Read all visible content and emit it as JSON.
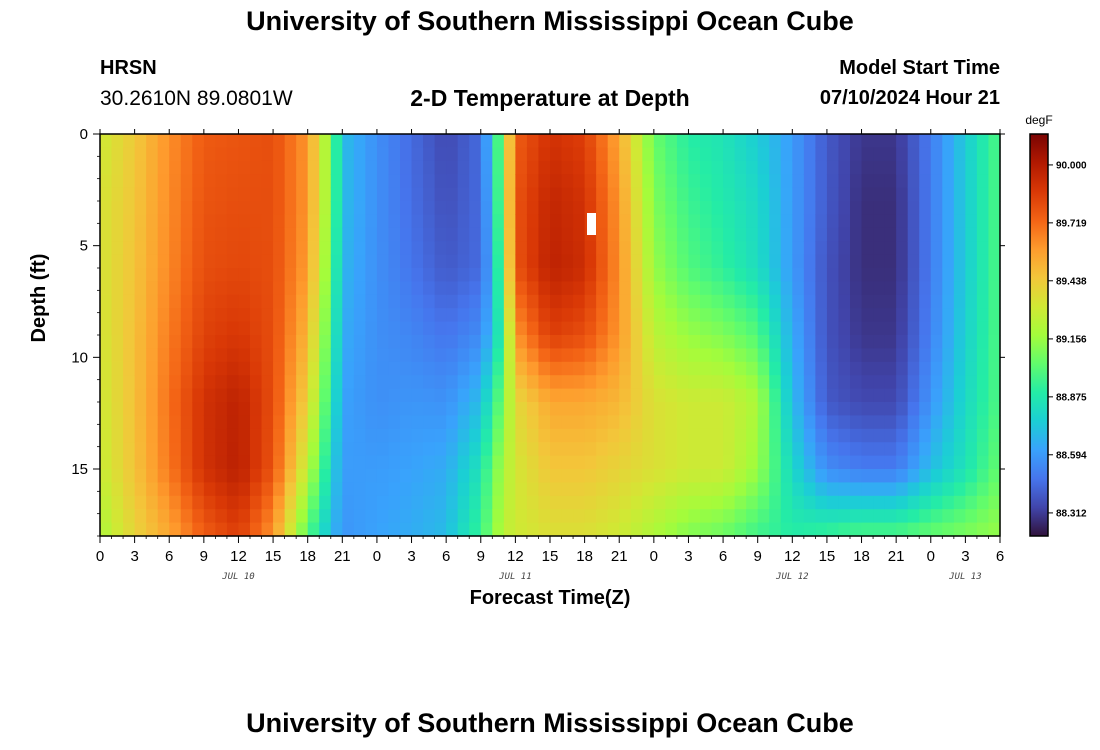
{
  "header": {
    "title": "University of Southern Mississippi Ocean Cube",
    "station_name": "HRSN",
    "station_coords": "30.2610N  89.0801W",
    "chart_title": "2-D Temperature at Depth",
    "model_start_label": "Model Start Time",
    "model_start_value": "07/10/2024 Hour 21"
  },
  "footer": {
    "title": "University of Southern Mississippi Ocean Cube"
  },
  "chart_data": {
    "type": "heatmap",
    "title": "2-D Temperature at Depth",
    "xlabel": "Forecast Time(Z)",
    "ylabel": "Depth (ft)",
    "x_hours_range": [
      0,
      78
    ],
    "x_tick_labels": [
      "0",
      "3",
      "6",
      "9",
      "12",
      "15",
      "18",
      "21",
      "0",
      "3",
      "6",
      "9",
      "12",
      "15",
      "18",
      "21",
      "0",
      "3",
      "6",
      "9",
      "12",
      "15",
      "18",
      "21",
      "0",
      "3",
      "6"
    ],
    "day_labels": [
      {
        "label": "JUL 10",
        "hour": 12
      },
      {
        "label": "JUL 11",
        "hour": 36
      },
      {
        "label": "JUL 12",
        "hour": 60
      },
      {
        "label": "JUL 13",
        "hour": 75
      }
    ],
    "y_range_ft": [
      0,
      18
    ],
    "y_ticks": [
      0,
      5,
      10,
      15
    ],
    "y_inverted": true,
    "colorbar": {
      "unit": "degF",
      "tick_labels": [
        "90.000",
        "89.719",
        "89.438",
        "89.156",
        "88.875",
        "88.594",
        "88.312"
      ],
      "min": 88.2,
      "max": 90.15,
      "palette": [
        "#30123b",
        "#4145ab",
        "#4675ed",
        "#39a2fc",
        "#1bcfd4",
        "#24eca6",
        "#61fc6c",
        "#a4fc3b",
        "#d1e834",
        "#f3c63a",
        "#fe9b2d",
        "#f36315",
        "#d93806",
        "#b11901",
        "#7a0403"
      ]
    },
    "temperature_profiles_degF": {
      "depths_ft": [
        0,
        3,
        6,
        9,
        12,
        15,
        18
      ],
      "series": [
        {
          "hour": 0,
          "values": [
            89.3,
            89.33,
            89.33,
            89.32,
            89.3,
            89.28,
            89.2
          ]
        },
        {
          "hour": 3,
          "values": [
            89.44,
            89.45,
            89.46,
            89.47,
            89.47,
            89.46,
            89.4
          ]
        },
        {
          "hour": 6,
          "values": [
            89.62,
            89.63,
            89.64,
            89.67,
            89.7,
            89.68,
            89.55
          ]
        },
        {
          "hour": 9,
          "values": [
            89.76,
            89.78,
            89.8,
            89.84,
            89.9,
            89.9,
            89.75
          ]
        },
        {
          "hour": 12,
          "values": [
            89.78,
            89.8,
            89.82,
            89.88,
            89.97,
            89.98,
            89.85
          ]
        },
        {
          "hour": 15,
          "values": [
            89.8,
            89.8,
            89.8,
            89.8,
            89.8,
            89.78,
            89.6
          ]
        },
        {
          "hour": 18,
          "values": [
            89.6,
            89.6,
            89.58,
            89.5,
            89.4,
            89.25,
            89.0
          ]
        },
        {
          "hour": 20,
          "values": [
            89.1,
            89.1,
            89.05,
            88.98,
            88.9,
            88.8,
            88.7
          ]
        },
        {
          "hour": 21,
          "values": [
            88.7,
            88.7,
            88.68,
            88.65,
            88.62,
            88.6,
            88.58
          ]
        },
        {
          "hour": 24,
          "values": [
            88.56,
            88.56,
            88.56,
            88.56,
            88.56,
            88.6,
            88.62
          ]
        },
        {
          "hour": 27,
          "values": [
            88.45,
            88.46,
            88.48,
            88.53,
            88.58,
            88.62,
            88.65
          ]
        },
        {
          "hour": 30,
          "values": [
            88.35,
            88.37,
            88.4,
            88.48,
            88.57,
            88.65,
            88.7
          ]
        },
        {
          "hour": 33,
          "values": [
            88.45,
            88.45,
            88.45,
            88.55,
            88.7,
            88.85,
            88.95
          ]
        },
        {
          "hour": 34,
          "values": [
            88.75,
            88.7,
            88.65,
            88.7,
            88.9,
            89.05,
            89.1
          ]
        },
        {
          "hour": 35,
          "values": [
            89.2,
            89.2,
            89.15,
            89.0,
            89.1,
            89.2,
            89.25
          ]
        },
        {
          "hour": 36,
          "values": [
            89.75,
            89.78,
            89.78,
            89.6,
            89.38,
            89.32,
            89.3
          ]
        },
        {
          "hour": 39,
          "values": [
            89.9,
            89.95,
            89.97,
            89.85,
            89.55,
            89.45,
            89.35
          ]
        },
        {
          "hour": 42,
          "values": [
            89.85,
            89.9,
            89.92,
            89.8,
            89.55,
            89.45,
            89.35
          ]
        },
        {
          "hour": 45,
          "values": [
            89.55,
            89.6,
            89.62,
            89.6,
            89.5,
            89.4,
            89.3
          ]
        },
        {
          "hour": 48,
          "values": [
            89.05,
            89.1,
            89.15,
            89.25,
            89.35,
            89.35,
            89.2
          ]
        },
        {
          "hour": 51,
          "values": [
            88.9,
            88.95,
            89.0,
            89.15,
            89.3,
            89.3,
            89.1
          ]
        },
        {
          "hour": 54,
          "values": [
            88.85,
            88.88,
            88.92,
            89.1,
            89.3,
            89.3,
            89.05
          ]
        },
        {
          "hour": 57,
          "values": [
            88.75,
            88.8,
            88.82,
            89.0,
            89.2,
            89.15,
            88.95
          ]
        },
        {
          "hour": 60,
          "values": [
            88.6,
            88.6,
            88.6,
            88.65,
            88.7,
            88.8,
            88.9
          ]
        },
        {
          "hour": 63,
          "values": [
            88.4,
            88.4,
            88.38,
            88.38,
            88.4,
            88.55,
            88.95
          ]
        },
        {
          "hour": 66,
          "values": [
            88.3,
            88.28,
            88.28,
            88.3,
            88.35,
            88.5,
            89.0
          ]
        },
        {
          "hour": 69,
          "values": [
            88.3,
            88.28,
            88.28,
            88.3,
            88.35,
            88.5,
            89.0
          ]
        },
        {
          "hour": 72,
          "values": [
            88.5,
            88.5,
            88.5,
            88.52,
            88.58,
            88.7,
            89.05
          ]
        },
        {
          "hour": 75,
          "values": [
            88.75,
            88.75,
            88.75,
            88.77,
            88.8,
            88.85,
            89.1
          ]
        },
        {
          "hour": 78,
          "values": [
            89.0,
            89.0,
            89.0,
            89.0,
            89.0,
            89.05,
            89.15
          ]
        }
      ]
    }
  }
}
